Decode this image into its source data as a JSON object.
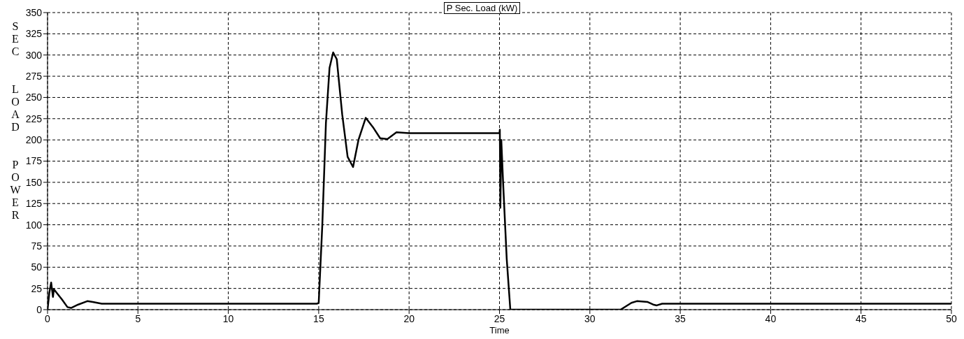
{
  "chart_data": {
    "type": "line",
    "title": "P Sec. Load  (kW)",
    "xlabel": "Time",
    "ylabel": "SEC  LOAD  POWER",
    "xlim": [
      0,
      50
    ],
    "xticks": [
      0,
      5,
      10,
      15,
      20,
      25,
      30,
      35,
      40,
      45,
      50
    ],
    "ylim": [
      0,
      350
    ],
    "yticks": [
      0,
      25,
      50,
      75,
      100,
      125,
      150,
      175,
      200,
      225,
      250,
      275,
      300,
      325,
      350
    ],
    "grid": true,
    "marker": "none",
    "line_style": "solid",
    "series": [
      {
        "color": "#000000",
        "x": [
          0,
          0.1,
          0.2,
          0.3,
          0.35,
          0.5,
          0.8,
          1.1,
          1.3,
          1.7,
          2.2,
          2.5,
          3,
          5,
          10,
          14.9,
          15,
          15.2,
          15.4,
          15.6,
          15.8,
          16,
          16.3,
          16.6,
          16.9,
          17.2,
          17.6,
          18,
          18.4,
          18.8,
          19.3,
          20,
          22,
          25,
          25.02,
          25.05,
          25.1,
          25.2,
          25.4,
          25.6,
          31.7,
          32.3,
          32.6,
          33.2,
          33.5,
          33.7,
          34,
          40,
          50
        ],
        "values": [
          0,
          20,
          32,
          15,
          24,
          20,
          12,
          3,
          2,
          6,
          10,
          9,
          7,
          7,
          7,
          7,
          8,
          100,
          220,
          285,
          303,
          295,
          230,
          180,
          168,
          200,
          226,
          215,
          202,
          201,
          209,
          208,
          208,
          208,
          212,
          120,
          200,
          150,
          60,
          0,
          0,
          8,
          10,
          9,
          6,
          5,
          7,
          7,
          7
        ]
      }
    ]
  }
}
